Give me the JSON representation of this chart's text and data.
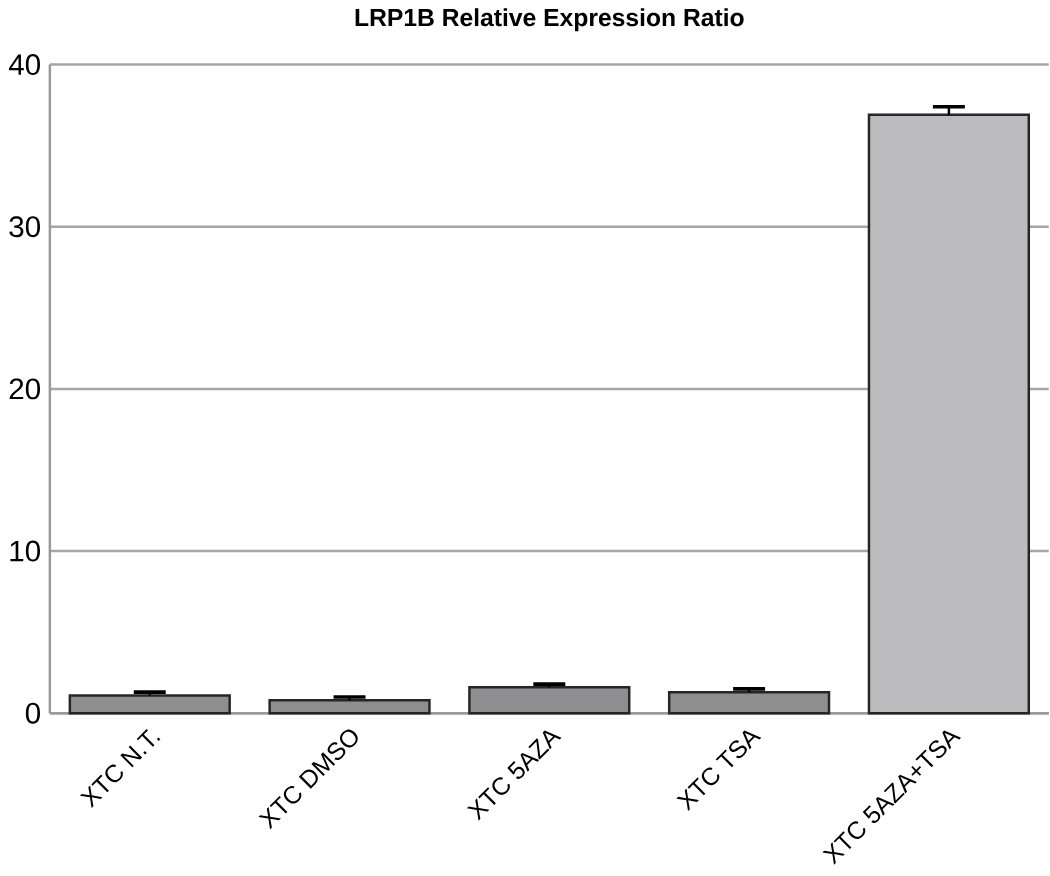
{
  "chart_data": {
    "type": "bar",
    "title": "LRP1B Relative Expression Ratio",
    "categories": [
      "XTC N.T.",
      "XTC DMSO",
      "XTC 5AZA",
      "XTC TSA",
      "XTC 5AZA+TSA"
    ],
    "values": [
      1.1,
      0.8,
      1.6,
      1.3,
      36.9
    ],
    "errors": [
      0.2,
      0.2,
      0.2,
      0.2,
      0.5
    ],
    "colors": [
      "#8e8e90",
      "#8e8e90",
      "#8e8e90",
      "#8e8e90",
      "#bcbcbe"
    ],
    "ylim": [
      0,
      40
    ],
    "yticks": [
      0,
      10,
      20,
      30,
      40
    ],
    "grid": "y"
  }
}
